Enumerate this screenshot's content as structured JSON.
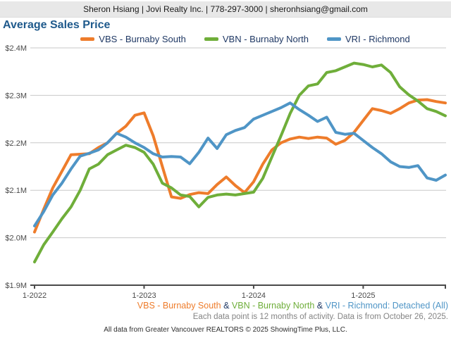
{
  "header": {
    "contact_line": "Sheron Hsiang | Jovi Realty Inc. | 778-297-3000 | sheronhsiang@gmail.com"
  },
  "title": "Average Sales Price",
  "chart_data": {
    "type": "line",
    "title": "Average Sales Price",
    "grid": "horizontal",
    "legend_position": "top",
    "ylim": [
      1.9,
      2.4
    ],
    "y_ticks": [
      {
        "label": "$2.4M",
        "value": 2.4
      },
      {
        "label": "$2.3M",
        "value": 2.3
      },
      {
        "label": "$2.2M",
        "value": 2.2
      },
      {
        "label": "$2.1M",
        "value": 2.1
      },
      {
        "label": "$2.0M",
        "value": 2.0
      },
      {
        "label": "$1.9M",
        "value": 1.9
      }
    ],
    "x": [
      "1-2022",
      "2-2022",
      "3-2022",
      "4-2022",
      "5-2022",
      "6-2022",
      "7-2022",
      "8-2022",
      "9-2022",
      "10-2022",
      "11-2022",
      "12-2022",
      "1-2023",
      "2-2023",
      "3-2023",
      "4-2023",
      "5-2023",
      "6-2023",
      "7-2023",
      "8-2023",
      "9-2023",
      "10-2023",
      "11-2023",
      "12-2023",
      "1-2024",
      "2-2024",
      "3-2024",
      "4-2024",
      "5-2024",
      "6-2024",
      "7-2024",
      "8-2024",
      "9-2024",
      "10-2024",
      "11-2024",
      "12-2024",
      "1-2025",
      "2-2025",
      "3-2025",
      "4-2025",
      "5-2025",
      "6-2025",
      "7-2025",
      "8-2025",
      "9-2025",
      "10-2025"
    ],
    "x_tick_indices": [
      0,
      12,
      24,
      36
    ],
    "x_tick_labels": [
      "1-2022",
      "1-2023",
      "1-2024",
      "1-2025"
    ],
    "series": [
      {
        "name": "VBS - Burnaby South",
        "color": "#ee7c2b",
        "values": [
          2.012,
          2.06,
          2.105,
          2.14,
          2.175,
          2.176,
          2.177,
          2.19,
          2.2,
          2.22,
          2.235,
          2.258,
          2.263,
          2.215,
          2.15,
          2.086,
          2.083,
          2.091,
          2.095,
          2.093,
          2.112,
          2.128,
          2.11,
          2.095,
          2.118,
          2.155,
          2.185,
          2.2,
          2.208,
          2.212,
          2.209,
          2.212,
          2.21,
          2.197,
          2.205,
          2.222,
          2.247,
          2.272,
          2.268,
          2.262,
          2.272,
          2.284,
          2.29,
          2.291,
          2.287,
          2.284
        ]
      },
      {
        "name": "VBN - Burnaby North",
        "color": "#6fae3a",
        "values": [
          1.949,
          1.985,
          2.012,
          2.04,
          2.065,
          2.1,
          2.145,
          2.155,
          2.175,
          2.185,
          2.195,
          2.19,
          2.18,
          2.155,
          2.115,
          2.105,
          2.09,
          2.087,
          2.065,
          2.085,
          2.09,
          2.092,
          2.09,
          2.093,
          2.096,
          2.125,
          2.17,
          2.215,
          2.262,
          2.3,
          2.32,
          2.324,
          2.348,
          2.352,
          2.36,
          2.368,
          2.365,
          2.36,
          2.364,
          2.348,
          2.318,
          2.301,
          2.288,
          2.272,
          2.266,
          2.257
        ]
      },
      {
        "name": "VRI - Richmond",
        "color": "#4f95c6",
        "values": [
          2.025,
          2.055,
          2.09,
          2.115,
          2.145,
          2.172,
          2.178,
          2.185,
          2.2,
          2.22,
          2.212,
          2.2,
          2.19,
          2.177,
          2.17,
          2.171,
          2.17,
          2.156,
          2.18,
          2.21,
          2.188,
          2.217,
          2.226,
          2.232,
          2.25,
          2.258,
          2.266,
          2.274,
          2.284,
          2.27,
          2.258,
          2.245,
          2.254,
          2.222,
          2.218,
          2.22,
          2.205,
          2.19,
          2.177,
          2.16,
          2.15,
          2.148,
          2.152,
          2.126,
          2.121,
          2.132
        ]
      }
    ]
  },
  "footer": {
    "series_line": {
      "vbs_label": "VBS - Burnaby South",
      "sep1": " & ",
      "vbn_label": "VBN - Burnaby North",
      "sep2": " & ",
      "vri_label": "VRI - Richmond",
      "type_label": ": Detached (All)"
    },
    "note": "Each data point is 12 months of activity. Data is from October 26, 2025.",
    "copyright": "All data from Greater Vancouver REALTORS © 2025 ShowingTime Plus, LLC."
  }
}
